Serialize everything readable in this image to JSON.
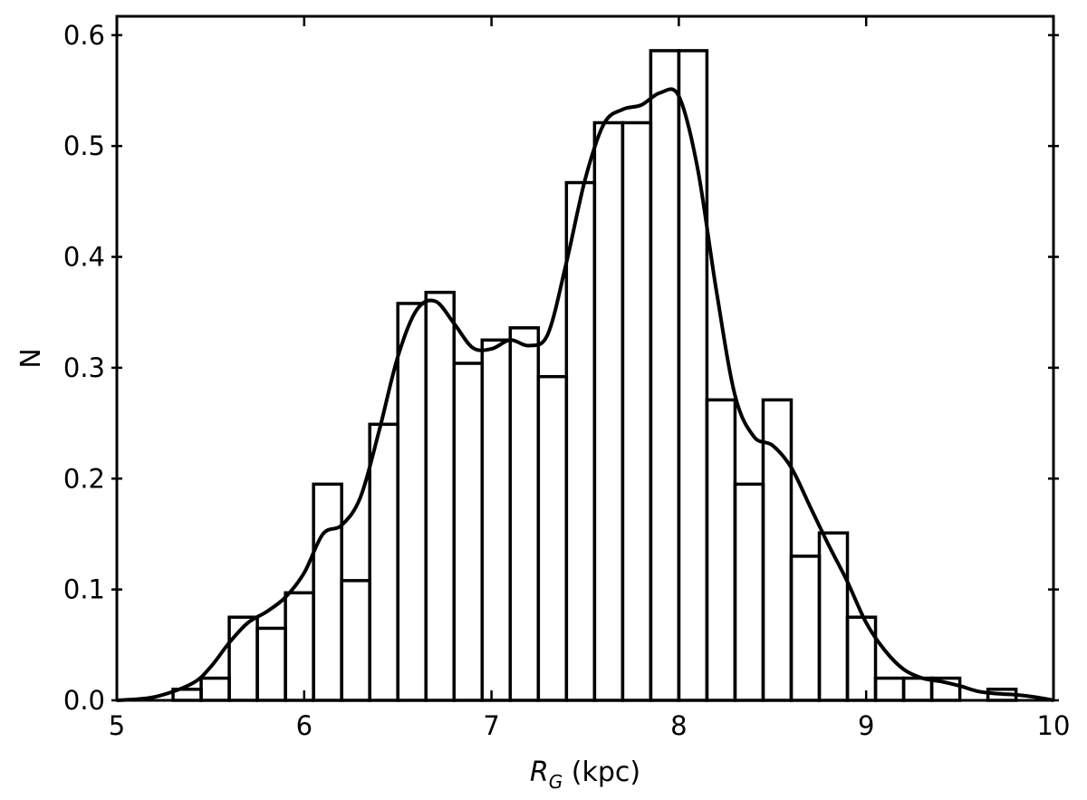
{
  "chart_data": {
    "type": "histogram",
    "xlabel": "R_G (kpc)",
    "xlabel_main": "R",
    "xlabel_sub": "G",
    "xlabel_rest": " (kpc)",
    "ylabel": "N",
    "xlim": [
      5,
      10
    ],
    "ylim": [
      0,
      0.617
    ],
    "xticks": [
      5,
      6,
      7,
      8,
      9,
      10
    ],
    "yticks": [
      0.0,
      0.1,
      0.2,
      0.3,
      0.4,
      0.5,
      0.6
    ],
    "ytick_labels": [
      "0.0",
      "0.1",
      "0.2",
      "0.3",
      "0.4",
      "0.5",
      "0.6"
    ],
    "grid": false,
    "histogram": {
      "bin_edges": [
        5.3,
        5.45,
        5.6,
        5.75,
        5.9,
        6.05,
        6.2,
        6.35,
        6.5,
        6.65,
        6.8,
        6.95,
        7.1,
        7.25,
        7.4,
        7.55,
        7.7,
        7.85,
        8.0,
        8.15,
        8.3,
        8.45,
        8.6,
        8.75,
        8.9,
        9.05,
        9.2,
        9.35,
        9.5,
        9.65,
        9.8
      ],
      "counts": [
        0.01,
        0.02,
        0.075,
        0.065,
        0.097,
        0.195,
        0.108,
        0.249,
        0.358,
        0.368,
        0.304,
        0.325,
        0.336,
        0.292,
        0.467,
        0.521,
        0.521,
        0.586,
        0.586,
        0.271,
        0.195,
        0.271,
        0.13,
        0.151,
        0.075,
        0.02,
        0.02,
        0.02,
        0.0,
        0.01
      ]
    },
    "kde": {
      "x": [
        5.0,
        5.2,
        5.4,
        5.5,
        5.6,
        5.7,
        5.8,
        5.9,
        6.0,
        6.1,
        6.2,
        6.3,
        6.4,
        6.5,
        6.6,
        6.7,
        6.8,
        6.9,
        7.0,
        7.1,
        7.2,
        7.3,
        7.4,
        7.5,
        7.6,
        7.7,
        7.8,
        7.9,
        8.0,
        8.1,
        8.2,
        8.3,
        8.4,
        8.5,
        8.6,
        8.7,
        8.8,
        8.9,
        9.0,
        9.1,
        9.2,
        9.3,
        9.4,
        9.5,
        9.6,
        9.7,
        9.8,
        9.9,
        10.0
      ],
      "y": [
        0.0,
        0.003,
        0.015,
        0.03,
        0.052,
        0.07,
        0.08,
        0.093,
        0.115,
        0.15,
        0.158,
        0.183,
        0.243,
        0.31,
        0.352,
        0.36,
        0.34,
        0.318,
        0.317,
        0.325,
        0.32,
        0.33,
        0.395,
        0.47,
        0.52,
        0.533,
        0.537,
        0.548,
        0.545,
        0.48,
        0.37,
        0.275,
        0.238,
        0.23,
        0.21,
        0.175,
        0.14,
        0.107,
        0.07,
        0.045,
        0.028,
        0.02,
        0.017,
        0.013,
        0.008,
        0.006,
        0.005,
        0.003,
        0.0
      ]
    }
  }
}
